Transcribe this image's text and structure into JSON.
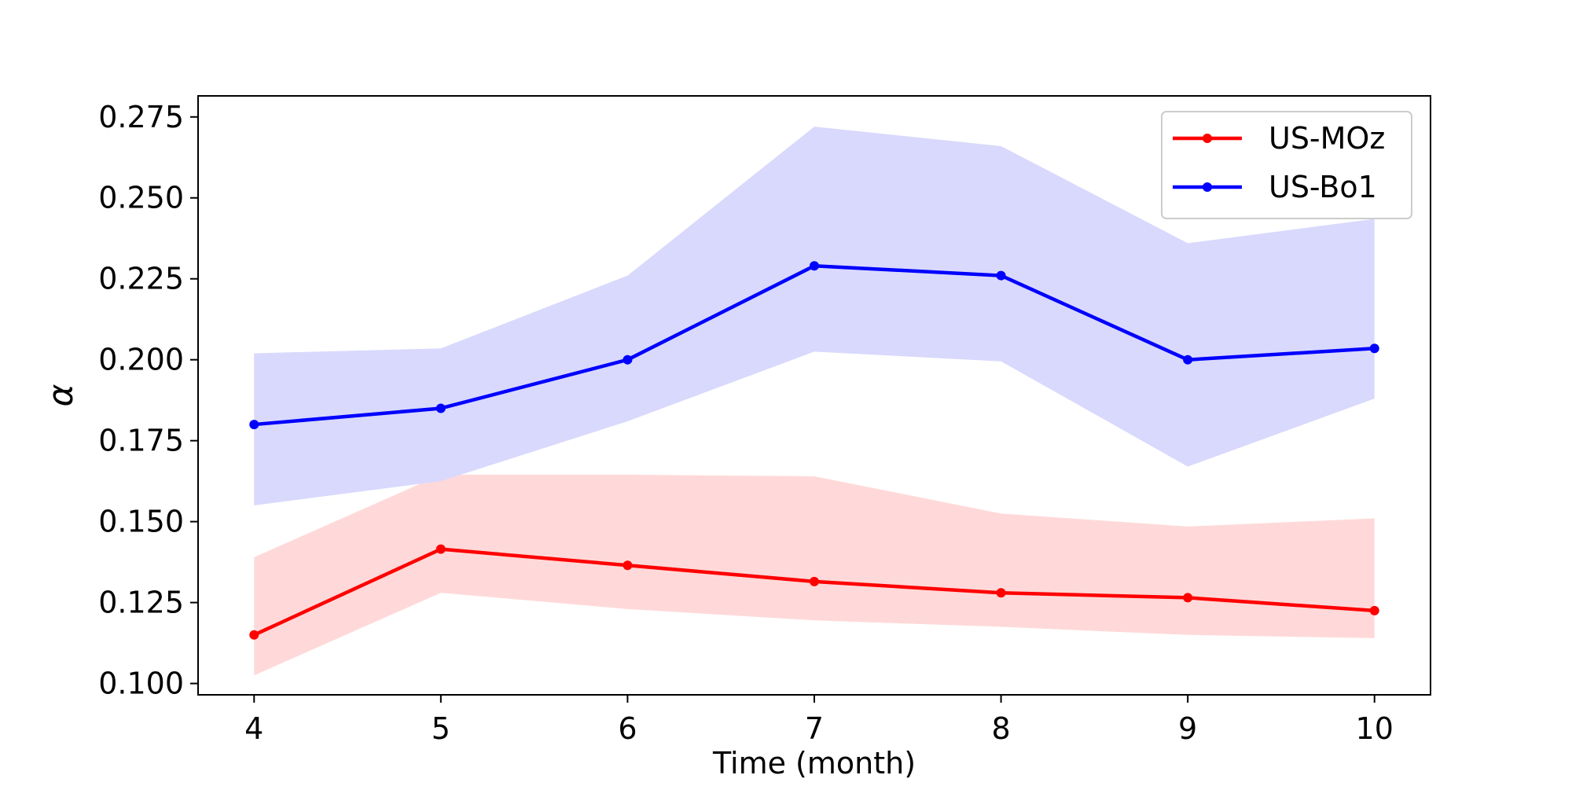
{
  "chart_data": {
    "type": "line",
    "title": "",
    "xlabel": "Time (month)",
    "ylabel": "α",
    "x": [
      4,
      5,
      6,
      7,
      8,
      9,
      10
    ],
    "xlim": [
      3.7,
      10.3
    ],
    "ylim": [
      0.0965,
      0.2815
    ],
    "x_ticks": [
      "4",
      "5",
      "6",
      "7",
      "8",
      "9",
      "10"
    ],
    "y_ticks": [
      0.1,
      0.125,
      0.15,
      0.175,
      0.2,
      0.225,
      0.25,
      0.275
    ],
    "y_tick_labels": [
      "0.100",
      "0.125",
      "0.150",
      "0.175",
      "0.200",
      "0.225",
      "0.250",
      "0.275"
    ],
    "grid": false,
    "legend_position": "top-right",
    "series": [
      {
        "name": "US-MOz",
        "color": "#ff0000",
        "band_color": "#ffd9d9",
        "values": [
          0.115,
          0.1415,
          0.1365,
          0.1315,
          0.128,
          0.1265,
          0.1225
        ],
        "lower": [
          0.1025,
          0.128,
          0.123,
          0.1195,
          0.1175,
          0.115,
          0.114
        ],
        "upper": [
          0.139,
          0.1645,
          0.1645,
          0.164,
          0.1525,
          0.1485,
          0.151
        ]
      },
      {
        "name": "US-Bo1",
        "color": "#0000ff",
        "band_color": "#d9d9fd",
        "values": [
          0.18,
          0.185,
          0.2,
          0.229,
          0.226,
          0.2,
          0.2035
        ],
        "lower": [
          0.155,
          0.1625,
          0.181,
          0.2025,
          0.1995,
          0.167,
          0.188
        ],
        "upper": [
          0.202,
          0.2035,
          0.226,
          0.272,
          0.266,
          0.236,
          0.2435
        ]
      }
    ]
  }
}
